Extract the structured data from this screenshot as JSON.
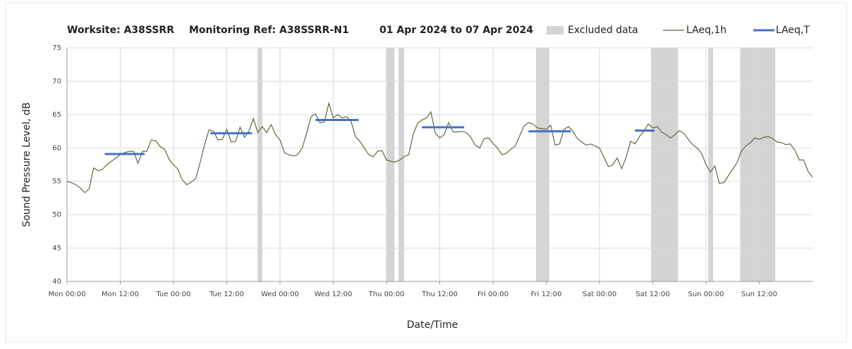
{
  "chart_data": {
    "type": "line",
    "title_parts": [
      "Worksite: A38SSRR",
      "Monitoring Ref: A38SSRR-N1",
      "01 Apr 2024 to 07 Apr 2024"
    ],
    "xlabel": "Date/Time",
    "ylabel": "Sound Pressure Level, dB",
    "xlim": [
      0,
      168
    ],
    "xticks": [
      {
        "value": 0,
        "label": "Mon 00:00"
      },
      {
        "value": 12,
        "label": "Mon 12:00"
      },
      {
        "value": 24,
        "label": "Tue 00:00"
      },
      {
        "value": 36,
        "label": "Tue 12:00"
      },
      {
        "value": 48,
        "label": "Wed 00:00"
      },
      {
        "value": 60,
        "label": "Wed 12:00"
      },
      {
        "value": 72,
        "label": "Thu 00:00"
      },
      {
        "value": 84,
        "label": "Thu 12:00"
      },
      {
        "value": 96,
        "label": "Fri 00:00"
      },
      {
        "value": 108,
        "label": "Fri 12:00"
      },
      {
        "value": 120,
        "label": "Sat 00:00"
      },
      {
        "value": 132,
        "label": "Sat 12:00"
      },
      {
        "value": 144,
        "label": "Sun 00:00"
      },
      {
        "value": 156,
        "label": "Sun 12:00"
      }
    ],
    "ylim": [
      40,
      75
    ],
    "yticks": [
      40,
      45,
      50,
      55,
      60,
      65,
      70,
      75
    ],
    "grid": true,
    "excluded": {
      "name": "Excluded data",
      "color": "#d4d4d4",
      "ranges": [
        [
          42.9,
          44
        ],
        [
          71.9,
          73.8
        ],
        [
          74.7,
          76
        ],
        [
          105.7,
          108.7
        ],
        [
          131.6,
          137.7
        ],
        [
          144.5,
          145.6
        ],
        [
          151.7,
          159.6
        ]
      ]
    },
    "series": [
      {
        "name": "LAeq,1h",
        "color": "#5b6b3e",
        "x": [
          0,
          1,
          2,
          3,
          4,
          5,
          6,
          7,
          8,
          9,
          10,
          11,
          12,
          13,
          14,
          15,
          16,
          17,
          18,
          19,
          20,
          21,
          22,
          23,
          24,
          25,
          26,
          27,
          28,
          29,
          30,
          31,
          32,
          33,
          34,
          35,
          36,
          37,
          38,
          39,
          40,
          41,
          42,
          43,
          44,
          45,
          46,
          47,
          48,
          49,
          50,
          51,
          52,
          53,
          54,
          55,
          56,
          57,
          58,
          59,
          60,
          61,
          62,
          63,
          64,
          65,
          66,
          67,
          68,
          69,
          70,
          71,
          72,
          73,
          74,
          75,
          76,
          77,
          78,
          79,
          80,
          81,
          82,
          83,
          84,
          85,
          86,
          87,
          88,
          89,
          90,
          91,
          92,
          93,
          94,
          95,
          96,
          97,
          98,
          99,
          100,
          101,
          102,
          103,
          104,
          105,
          106,
          107,
          108,
          109,
          110,
          111,
          112,
          113,
          114,
          115,
          116,
          117,
          118,
          119,
          120,
          121,
          122,
          123,
          124,
          125,
          126,
          127,
          128,
          129,
          130,
          131,
          132,
          133,
          134,
          135,
          136,
          137,
          138,
          139,
          140,
          141,
          142,
          143,
          144,
          145,
          146,
          147,
          148,
          149,
          150,
          151,
          152,
          153,
          154,
          155,
          156,
          157,
          158,
          159,
          160,
          161,
          162,
          163,
          164,
          165,
          166,
          167,
          168
        ],
        "values": [
          55,
          54.8,
          54.5,
          54,
          53.3,
          53.9,
          57,
          56.6,
          56.8,
          57.5,
          58,
          58.5,
          59,
          59.3,
          59.5,
          59.5,
          57.7,
          59.5,
          59.5,
          61.2,
          61.1,
          60.2,
          59.8,
          58.3,
          57.5,
          56.8,
          55.2,
          54.5,
          54.9,
          55.4,
          57.8,
          60.5,
          62.7,
          62.5,
          61.2,
          61.3,
          62.8,
          60.9,
          61,
          63.1,
          61.6,
          62.5,
          64.4,
          62.3,
          63.2,
          62.3,
          63.5,
          62,
          61.2,
          59.3,
          59,
          58.8,
          59,
          60,
          62.2,
          64.7,
          65.1,
          63.8,
          63.9,
          66.7,
          64.5,
          65,
          64.5,
          64.7,
          64,
          61.7,
          61,
          60,
          59,
          58.7,
          59.5,
          59.6,
          58.2,
          58,
          57.9,
          58.2,
          58.7,
          59,
          62,
          63.7,
          64.2,
          64.5,
          65.4,
          62.2,
          61.5,
          62,
          63.8,
          62.4,
          62.4,
          62.5,
          62.3,
          61.6,
          60.4,
          60,
          61.4,
          61.5,
          60.7,
          60,
          59,
          59.2,
          59.8,
          60.3,
          61.8,
          63.3,
          63.8,
          63.6,
          63,
          62.9,
          62.8,
          63.4,
          60.4,
          60.6,
          62.8,
          63.2,
          62.5,
          61.4,
          60.9,
          60.4,
          60.6,
          60.3,
          60,
          58.6,
          57.2,
          57.5,
          58.5,
          56.9,
          58.6,
          61,
          60.6,
          61.7,
          62.5,
          63.6,
          63,
          63.2,
          62.4,
          62,
          61.5,
          62,
          62.6,
          62.2,
          61.3,
          60.5,
          60,
          59.2,
          57.5,
          56.4,
          57.3,
          54.7,
          54.8,
          55.8,
          56.8,
          57.8,
          59.6,
          60.3,
          60.8,
          61.5,
          61.3,
          61.6,
          61.7,
          61.4,
          60.9,
          60.8,
          60.5,
          60.6,
          59.7,
          58.2,
          58.2,
          56.5,
          55.6
        ]
      }
    ],
    "period": {
      "name": "LAeq,T",
      "color": "#4472c4",
      "segments": [
        {
          "x": [
            8.5,
            17.5
          ],
          "value": 59.1
        },
        {
          "x": [
            32.3,
            41.7
          ],
          "value": 62.2
        },
        {
          "x": [
            56,
            65.7
          ],
          "value": 64.2
        },
        {
          "x": [
            80,
            89.5
          ],
          "value": 63.1
        },
        {
          "x": [
            104,
            113.5
          ],
          "value": 62.5
        },
        {
          "x": [
            128,
            132.4
          ],
          "value": 62.6
        }
      ]
    }
  }
}
